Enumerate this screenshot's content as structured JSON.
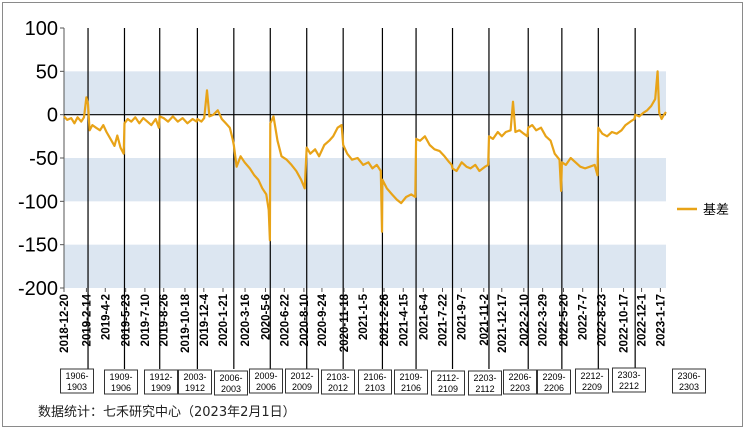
{
  "chart_data": {
    "type": "line",
    "yticks": [
      100,
      50,
      0,
      -50,
      -100,
      -150,
      -200
    ],
    "ylim": [
      -200,
      100
    ],
    "xlim": [
      "2018-12-20",
      "2023-01-31"
    ],
    "date_ticks": [
      "2018-12-20",
      "2019-2-14",
      "2019-4-2",
      "2019-5-23",
      "2019-7-10",
      "2019-8-26",
      "2019-10-18",
      "2019-12-4",
      "2020-1-21",
      "2020-3-16",
      "2020-5-6",
      "2020-6-22",
      "2020-8-10",
      "2020-9-24",
      "2020-11-18",
      "2021-1-5",
      "2021-2-26",
      "2021-4-15",
      "2021-6-4",
      "2021-7-22",
      "2021-9-7",
      "2021-11-2",
      "2021-12-17",
      "2022-2-10",
      "2022-3-29",
      "2022-5-20",
      "2022-7-7",
      "2022-8-23",
      "2022-10-17",
      "2022-12-1",
      "2023-1-17"
    ],
    "contract_lines": [
      "2019-02-18",
      "2019-05-20",
      "2019-08-16",
      "2019-11-18",
      "2020-02-17",
      "2020-05-18",
      "2020-08-17",
      "2020-11-16",
      "2021-02-22",
      "2021-05-17",
      "2021-08-16",
      "2021-11-15",
      "2022-02-21",
      "2022-05-16",
      "2022-08-15",
      "2022-11-15"
    ],
    "contracts": [
      "1906-1903",
      "1909-1906",
      "1912-1909",
      "2003-1912",
      "2006-2003",
      "2009-2006",
      "2012-2009",
      "2103-2012",
      "2106-2103",
      "2109-2106",
      "2112-2109",
      "2203-2112",
      "2206-2203",
      "2209-2206",
      "2212-2209",
      "2303-2212",
      "2306-2303"
    ],
    "shaded_bands": [
      [
        0,
        50
      ],
      [
        -100,
        -50
      ],
      [
        -200,
        -150
      ]
    ],
    "series": [
      {
        "name": "基差",
        "color": "#e8a317",
        "points": [
          [
            "2018-12-20",
            -2
          ],
          [
            "2018-12-28",
            -6
          ],
          [
            "2019-01-07",
            -4
          ],
          [
            "2019-01-15",
            -10
          ],
          [
            "2019-01-23",
            -3
          ],
          [
            "2019-02-01",
            -8
          ],
          [
            "2019-02-08",
            -3
          ],
          [
            "2019-02-14",
            20
          ],
          [
            "2019-02-18",
            12
          ],
          [
            "2019-02-22",
            -18
          ],
          [
            "2019-03-01",
            -12
          ],
          [
            "2019-03-10",
            -15
          ],
          [
            "2019-03-20",
            -18
          ],
          [
            "2019-03-28",
            -12
          ],
          [
            "2019-04-05",
            -20
          ],
          [
            "2019-04-15",
            -28
          ],
          [
            "2019-04-25",
            -36
          ],
          [
            "2019-05-02",
            -24
          ],
          [
            "2019-05-10",
            -38
          ],
          [
            "2019-05-18",
            -45
          ],
          [
            "2019-05-20",
            -10
          ],
          [
            "2019-05-28",
            -5
          ],
          [
            "2019-06-06",
            -8
          ],
          [
            "2019-06-16",
            -3
          ],
          [
            "2019-06-26",
            -10
          ],
          [
            "2019-07-06",
            -4
          ],
          [
            "2019-07-16",
            -8
          ],
          [
            "2019-07-26",
            -12
          ],
          [
            "2019-08-06",
            -5
          ],
          [
            "2019-08-14",
            -15
          ],
          [
            "2019-08-16",
            -2
          ],
          [
            "2019-08-26",
            -4
          ],
          [
            "2019-09-06",
            -8
          ],
          [
            "2019-09-18",
            -2
          ],
          [
            "2019-09-30",
            -8
          ],
          [
            "2019-10-12",
            -4
          ],
          [
            "2019-10-24",
            -10
          ],
          [
            "2019-11-06",
            -5
          ],
          [
            "2019-11-16",
            -8
          ],
          [
            "2019-11-18",
            -5
          ],
          [
            "2019-11-28",
            -8
          ],
          [
            "2019-12-05",
            -4
          ],
          [
            "2019-12-12",
            28
          ],
          [
            "2019-12-18",
            -2
          ],
          [
            "2019-12-28",
            0
          ],
          [
            "2020-01-08",
            5
          ],
          [
            "2020-01-18",
            -5
          ],
          [
            "2020-01-28",
            -10
          ],
          [
            "2020-02-07",
            -15
          ],
          [
            "2020-02-14",
            -28
          ],
          [
            "2020-02-17",
            -35
          ],
          [
            "2020-02-24",
            -60
          ],
          [
            "2020-03-05",
            -48
          ],
          [
            "2020-03-15",
            -55
          ],
          [
            "2020-03-28",
            -62
          ],
          [
            "2020-04-08",
            -70
          ],
          [
            "2020-04-18",
            -75
          ],
          [
            "2020-04-28",
            -85
          ],
          [
            "2020-05-08",
            -92
          ],
          [
            "2020-05-14",
            -110
          ],
          [
            "2020-05-17",
            -145
          ],
          [
            "2020-05-18",
            -10
          ],
          [
            "2020-05-26",
            -2
          ],
          [
            "2020-06-05",
            -30
          ],
          [
            "2020-06-15",
            -48
          ],
          [
            "2020-06-28",
            -52
          ],
          [
            "2020-07-10",
            -58
          ],
          [
            "2020-07-22",
            -65
          ],
          [
            "2020-08-03",
            -75
          ],
          [
            "2020-08-12",
            -85
          ],
          [
            "2020-08-17",
            -38
          ],
          [
            "2020-08-26",
            -45
          ],
          [
            "2020-09-07",
            -40
          ],
          [
            "2020-09-17",
            -48
          ],
          [
            "2020-09-30",
            -35
          ],
          [
            "2020-10-12",
            -30
          ],
          [
            "2020-10-22",
            -25
          ],
          [
            "2020-11-02",
            -15
          ],
          [
            "2020-11-12",
            -12
          ],
          [
            "2020-11-16",
            -35
          ],
          [
            "2020-11-26",
            -45
          ],
          [
            "2020-12-08",
            -52
          ],
          [
            "2020-12-22",
            -50
          ],
          [
            "2021-01-05",
            -58
          ],
          [
            "2021-01-18",
            -55
          ],
          [
            "2021-01-28",
            -62
          ],
          [
            "2021-02-08",
            -58
          ],
          [
            "2021-02-18",
            -65
          ],
          [
            "2021-02-21",
            -135
          ],
          [
            "2021-02-22",
            -75
          ],
          [
            "2021-03-05",
            -85
          ],
          [
            "2021-03-18",
            -92
          ],
          [
            "2021-03-30",
            -98
          ],
          [
            "2021-04-10",
            -102
          ],
          [
            "2021-04-22",
            -95
          ],
          [
            "2021-05-05",
            -92
          ],
          [
            "2021-05-15",
            -95
          ],
          [
            "2021-05-17",
            -28
          ],
          [
            "2021-05-27",
            -30
          ],
          [
            "2021-06-08",
            -25
          ],
          [
            "2021-06-20",
            -35
          ],
          [
            "2021-07-02",
            -40
          ],
          [
            "2021-07-15",
            -42
          ],
          [
            "2021-07-27",
            -48
          ],
          [
            "2021-08-08",
            -55
          ],
          [
            "2021-08-14",
            -58
          ],
          [
            "2021-08-16",
            -62
          ],
          [
            "2021-08-26",
            -65
          ],
          [
            "2021-09-08",
            -55
          ],
          [
            "2021-09-20",
            -60
          ],
          [
            "2021-09-30",
            -62
          ],
          [
            "2021-10-12",
            -58
          ],
          [
            "2021-10-22",
            -65
          ],
          [
            "2021-11-05",
            -60
          ],
          [
            "2021-11-13",
            -58
          ],
          [
            "2021-11-15",
            -25
          ],
          [
            "2021-11-25",
            -28
          ],
          [
            "2021-12-07",
            -20
          ],
          [
            "2021-12-17",
            -25
          ],
          [
            "2021-12-27",
            -20
          ],
          [
            "2022-01-08",
            -18
          ],
          [
            "2022-01-14",
            15
          ],
          [
            "2022-01-20",
            -20
          ],
          [
            "2022-01-30",
            -18
          ],
          [
            "2022-02-10",
            -22
          ],
          [
            "2022-02-19",
            -25
          ],
          [
            "2022-02-21",
            -15
          ],
          [
            "2022-03-03",
            -12
          ],
          [
            "2022-03-13",
            -18
          ],
          [
            "2022-03-25",
            -15
          ],
          [
            "2022-04-06",
            -25
          ],
          [
            "2022-04-18",
            -30
          ],
          [
            "2022-04-28",
            -45
          ],
          [
            "2022-05-10",
            -52
          ],
          [
            "2022-05-14",
            -88
          ],
          [
            "2022-05-16",
            -55
          ],
          [
            "2022-05-26",
            -58
          ],
          [
            "2022-06-07",
            -50
          ],
          [
            "2022-06-19",
            -55
          ],
          [
            "2022-07-01",
            -60
          ],
          [
            "2022-07-13",
            -62
          ],
          [
            "2022-07-25",
            -60
          ],
          [
            "2022-08-06",
            -58
          ],
          [
            "2022-08-13",
            -70
          ],
          [
            "2022-08-15",
            -15
          ],
          [
            "2022-08-25",
            -22
          ],
          [
            "2022-09-06",
            -25
          ],
          [
            "2022-09-18",
            -20
          ],
          [
            "2022-09-30",
            -22
          ],
          [
            "2022-10-12",
            -18
          ],
          [
            "2022-10-22",
            -12
          ],
          [
            "2022-11-03",
            -8
          ],
          [
            "2022-11-13",
            -5
          ],
          [
            "2022-11-15",
            0
          ],
          [
            "2022-11-25",
            -2
          ],
          [
            "2022-12-05",
            2
          ],
          [
            "2022-12-15",
            5
          ],
          [
            "2022-12-25",
            10
          ],
          [
            "2023-01-04",
            18
          ],
          [
            "2023-01-10",
            50
          ],
          [
            "2023-01-14",
            2
          ],
          [
            "2023-01-20",
            -5
          ],
          [
            "2023-01-26",
            0
          ],
          [
            "2023-01-31",
            3
          ]
        ]
      }
    ]
  },
  "footer": {
    "source": "数据统计：七禾研究中心（2023年2月1日）"
  }
}
